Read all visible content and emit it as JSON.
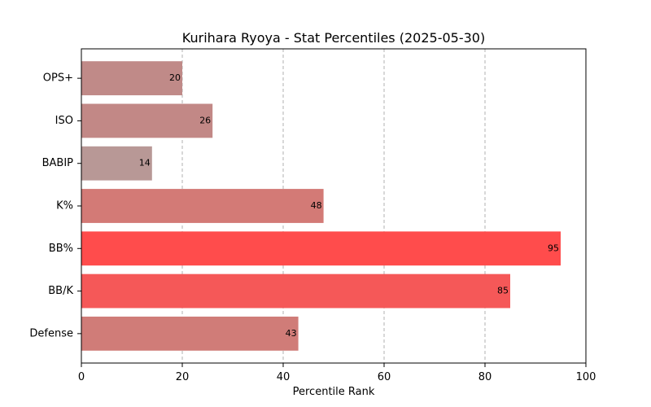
{
  "chart_data": {
    "type": "bar",
    "orientation": "horizontal",
    "title": "Kurihara Ryoya - Stat Percentiles (2025-05-30)",
    "xlabel": "Percentile Rank",
    "ylabel": "",
    "xlim": [
      0,
      100
    ],
    "xticks": [
      0,
      20,
      40,
      60,
      80,
      100
    ],
    "grid": "x-dashed",
    "categories": [
      "OPS+",
      "ISO",
      "BABIP",
      "K%",
      "BB%",
      "BB/K",
      "Defense"
    ],
    "values": [
      20,
      26,
      14,
      48,
      95,
      85,
      43
    ],
    "colors": [
      "#c08a88",
      "#c28886",
      "#b89896",
      "#d37a76",
      "#ff4c4c",
      "#f55858",
      "#d07c78"
    ]
  }
}
